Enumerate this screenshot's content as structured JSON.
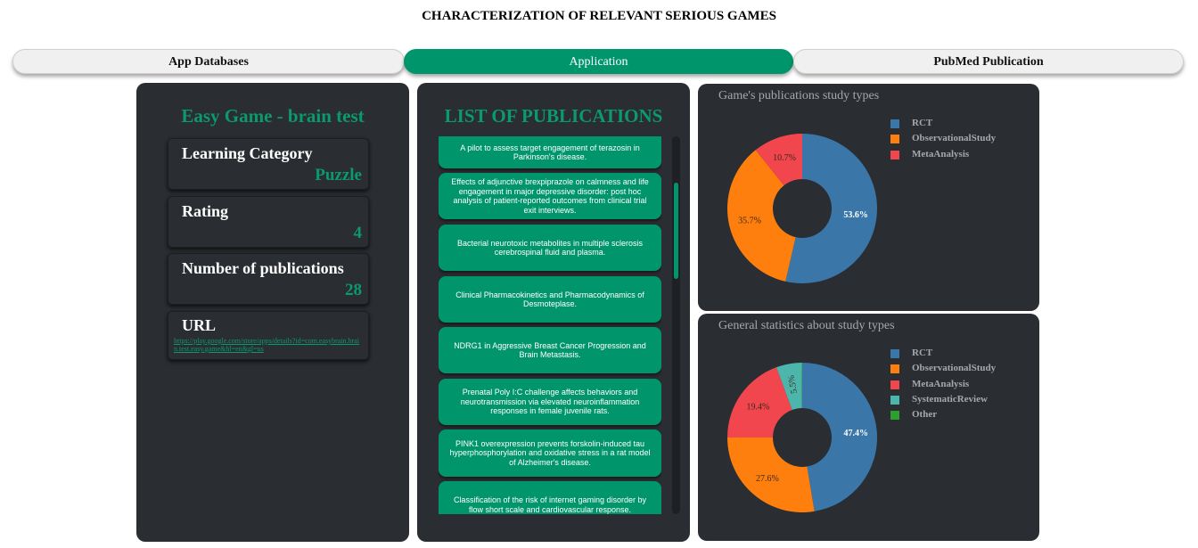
{
  "page": {
    "title": "CHARACTERIZATION OF RELEVANT SERIOUS GAMES"
  },
  "tabs": [
    {
      "label": "App Databases",
      "active": false
    },
    {
      "label": "Application",
      "active": true
    },
    {
      "label": "PubMed Publication",
      "active": false
    }
  ],
  "game": {
    "name": "Easy Game - brain test",
    "learning_category": {
      "label": "Learning Category",
      "value": "Puzzle"
    },
    "rating": {
      "label": "Rating",
      "value": "4"
    },
    "publications": {
      "label": "Number of publications",
      "value": "28"
    },
    "url": {
      "label": "URL",
      "value": "https://play.google.com/store/apps/details?id=com.easybrain.brain.test.easy.game&hl=en&gl=us"
    }
  },
  "publications": {
    "title": "LIST OF PUBLICATIONS",
    "items": [
      "A pilot to assess target engagement of terazosin in Parkinson's disease.",
      "Effects of adjunctive brexpiprazole on calmness and life engagement in major depressive disorder: post hoc analysis of patient-reported outcomes from clinical trial exit interviews.",
      "Bacterial neurotoxic metabolites in multiple sclerosis cerebrospinal fluid and plasma.",
      "Clinical Pharmacokinetics and Pharmacodynamics of Desmoteplase.",
      "NDRG1 in Aggressive Breast Cancer Progression and Brain Metastasis.",
      "Prenatal Poly I:C challenge affects behaviors and neurotransmission via elevated neuroinflammation responses in female juvenile rats.",
      "PINK1 overexpression prevents forskolin-induced tau hyperphosphorylation and oxidative stress in a rat model of Alzheimer's disease.",
      "Classification of the risk of internet gaming disorder by flow short scale and cardiovascular response."
    ]
  },
  "colors": {
    "accent": "#00956a",
    "panel": "#2a2d31",
    "RCT": "#3a76a8",
    "ObservationalStudy": "#ff7f0e",
    "MetaAnalysis": "#f2464f",
    "SystematicReview": "#4db6ac",
    "Other": "#2ca02c"
  },
  "chart_data": [
    {
      "type": "pie",
      "title": "Game's publications study types",
      "legend_position": "right",
      "labels": [
        "RCT",
        "ObservationalStudy",
        "MetaAnalysis"
      ],
      "values": [
        53.6,
        35.7,
        10.7
      ],
      "value_labels": [
        "53.6%",
        "35.7%",
        "10.7%"
      ],
      "colors": [
        "#3a76a8",
        "#ff7f0e",
        "#f2464f"
      ]
    },
    {
      "type": "pie",
      "title": "General statistics about study types",
      "legend_position": "right",
      "labels": [
        "RCT",
        "ObservationalStudy",
        "MetaAnalysis",
        "SystematicReview",
        "Other"
      ],
      "values": [
        47.4,
        27.6,
        19.4,
        5.5,
        0.1
      ],
      "value_labels": [
        "47.4%",
        "27.6%",
        "19.4%",
        "5.5%",
        ""
      ],
      "colors": [
        "#3a76a8",
        "#ff7f0e",
        "#f2464f",
        "#4db6ac",
        "#2ca02c"
      ]
    }
  ]
}
